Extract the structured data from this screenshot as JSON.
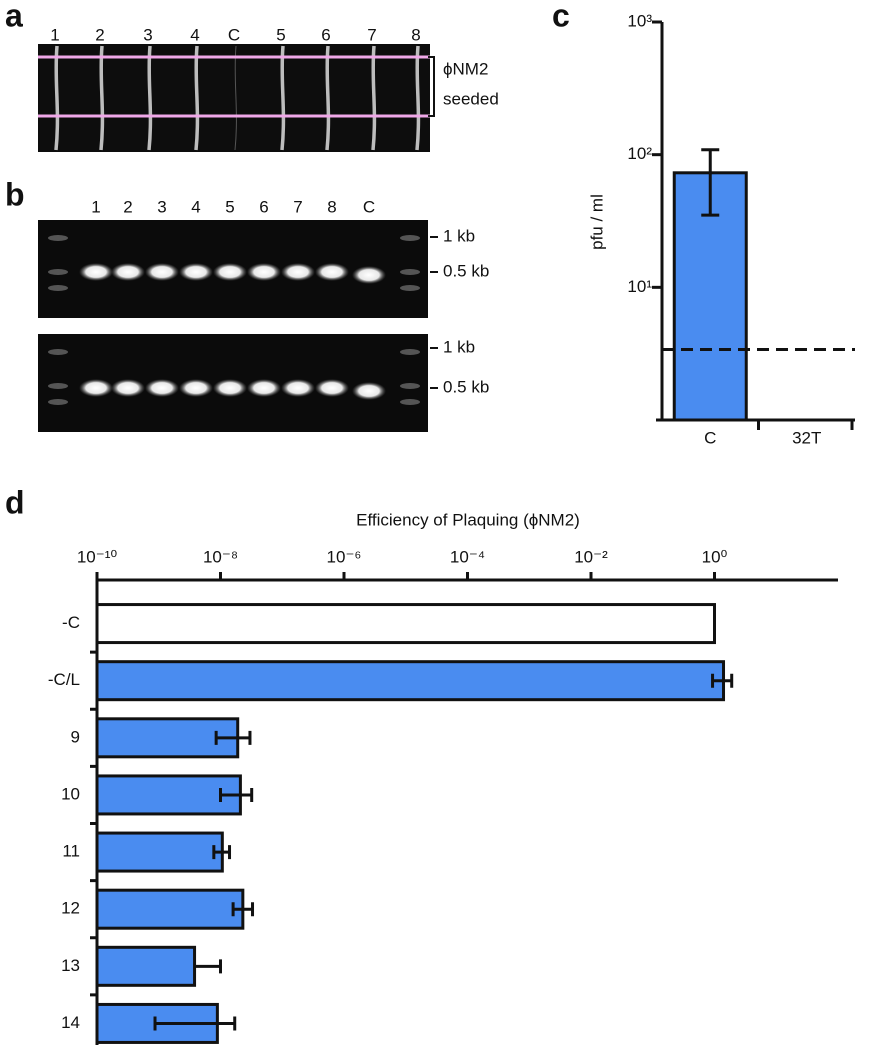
{
  "panel_a": {
    "label": "a",
    "lanes": [
      "1",
      "2",
      "3",
      "4",
      "C",
      "5",
      "6",
      "7",
      "8"
    ],
    "annotation": [
      "ϕNM2",
      "seeded"
    ]
  },
  "panel_b": {
    "label": "b",
    "lanes": [
      "1",
      "2",
      "3",
      "4",
      "5",
      "6",
      "7",
      "8",
      "C"
    ],
    "markers": [
      [
        "1 kb",
        "0.5 kb"
      ],
      [
        "1 kb",
        "0.5 kb"
      ]
    ]
  },
  "chart_data": [
    {
      "type": "bar",
      "panel_label": "c",
      "ylabel": "pfu / ml",
      "log_scale": true,
      "categories": [
        "C",
        "32T"
      ],
      "values": [
        73,
        null
      ],
      "error_range": [
        [
          35,
          109
        ],
        null
      ],
      "color": "#4a8cf0",
      "reference_line": 3.4,
      "ylim": [
        1,
        1000
      ],
      "yticks": [
        {
          "value": 10,
          "label": "10¹"
        },
        {
          "value": 100,
          "label": "10²"
        },
        {
          "value": 1000,
          "label": "10³"
        }
      ]
    },
    {
      "type": "hbar",
      "panel_label": "d",
      "title": "Efficiency of Plaquing (ϕNM2)",
      "log_scale": true,
      "categories": [
        "-C",
        "-C/L",
        "9",
        "10",
        "11",
        "12",
        "13",
        "14"
      ],
      "values": [
        1,
        1.4,
        1.9e-08,
        2.1e-08,
        1.07e-08,
        2.3e-08,
        3.8e-09,
        8.9e-09
      ],
      "error_range": [
        null,
        [
          0.93,
          1.9
        ],
        [
          8.5e-09,
          3e-08
        ],
        [
          1e-08,
          3.2e-08
        ],
        [
          7.8e-09,
          1.4e-08
        ],
        [
          1.6e-08,
          3.3e-08
        ],
        [
          null,
          1e-08
        ],
        [
          8.7e-10,
          1.7e-08
        ]
      ],
      "colors": [
        "#ffffff",
        "#4a8cf0",
        "#4a8cf0",
        "#4a8cf0",
        "#4a8cf0",
        "#4a8cf0",
        "#4a8cf0",
        "#4a8cf0"
      ],
      "xlim": [
        1e-10,
        100
      ],
      "xticks": [
        {
          "value": 1e-10,
          "label": "10⁻¹⁰"
        },
        {
          "value": 1e-08,
          "label": "10⁻⁸"
        },
        {
          "value": 1e-06,
          "label": "10⁻⁶"
        },
        {
          "value": 0.0001,
          "label": "10⁻⁴"
        },
        {
          "value": 0.01,
          "label": "10⁻²"
        },
        {
          "value": 1,
          "label": "10⁰"
        }
      ]
    }
  ]
}
